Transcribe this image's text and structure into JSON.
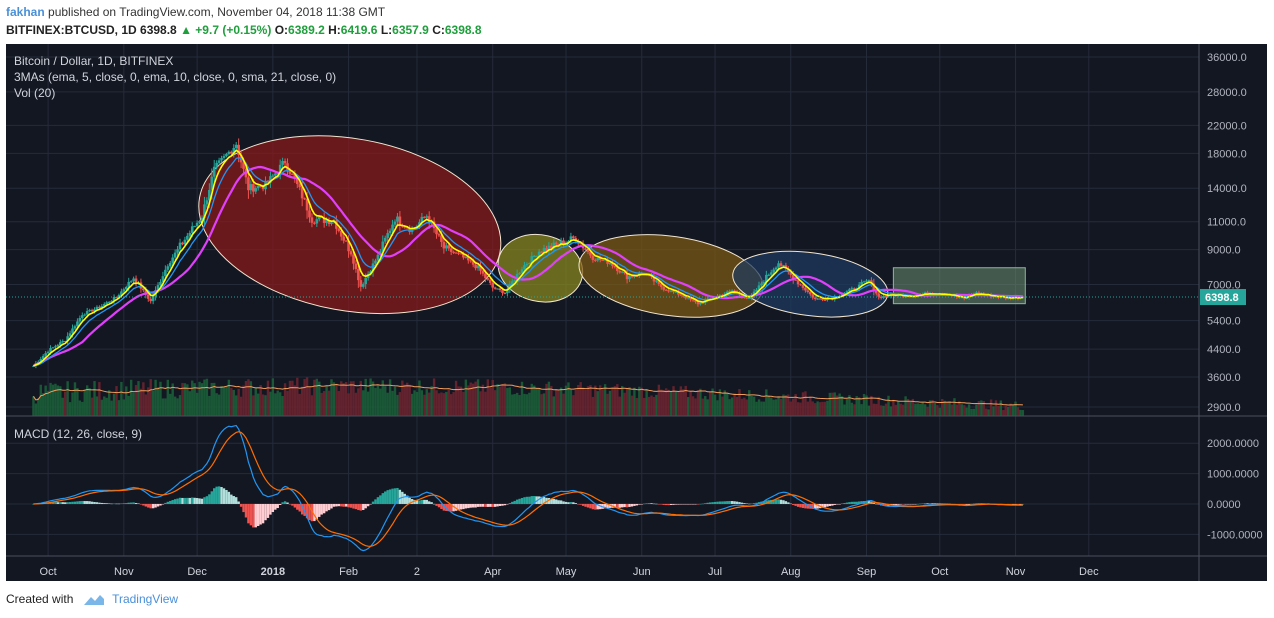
{
  "header": {
    "author": "fakhan",
    "published_text": "published on TradingView.com, November 04, 2018 11:38 GMT",
    "symbol": "BITFINEX:BTCUSD, 1D",
    "last": "6398.8",
    "change": "+9.7 (+0.15%)",
    "o_label": "O:",
    "o_value": "6389.2",
    "h_label": "H:",
    "h_value": "6419.6",
    "l_label": "L:",
    "l_value": "6357.9",
    "c_label": "C:",
    "c_value": "6398.8"
  },
  "footer": {
    "created_with": "Created with",
    "brand": "TradingView"
  },
  "colors": {
    "background": "#131722",
    "up": "#26a69a",
    "down": "#ef5350",
    "ema5": "#ffff00",
    "ema10": "#2196f3",
    "sma21": "#e040fb",
    "macd": "#2196f3",
    "signal": "#ff6d00",
    "price_line": "#26a69a",
    "volume_ma": "#f39c5a"
  },
  "chart_data": {
    "type": "candlestick",
    "legend": {
      "title": "Bitcoin / Dollar, 1D, BITFINEX",
      "mas": "3MAs (ema, 5, close, 0, ema, 10, close, 0, sma, 21, close, 0)",
      "vol": "Vol (20)",
      "macd": "MACD (12, 26, close, 9)"
    },
    "x_ticks": [
      "Oct",
      "Nov",
      "Dec",
      "2018",
      "Feb",
      "2",
      "Apr",
      "May",
      "Jun",
      "Jul",
      "Aug",
      "Sep",
      "Oct",
      "Nov",
      "Dec"
    ],
    "price_ticks": [
      "36000.0",
      "28000.0",
      "22000.0",
      "18000.0",
      "14000.0",
      "11000.0",
      "9000.0",
      "7000.0",
      "5400.0",
      "4400.0",
      "3600.0",
      "2900.0"
    ],
    "price_scale": "log",
    "last_price": "6398.8",
    "macd_ticks": [
      "2000.0000",
      "1000.0000",
      "0.0000",
      "-1000.0000"
    ],
    "price_series": [
      {
        "d": "2017-09-25",
        "c": 3900
      },
      {
        "d": "2017-10-01",
        "c": 4350
      },
      {
        "d": "2017-10-08",
        "c": 4700
      },
      {
        "d": "2017-10-15",
        "c": 5650
      },
      {
        "d": "2017-10-22",
        "c": 5950
      },
      {
        "d": "2017-10-29",
        "c": 6400
      },
      {
        "d": "2017-11-05",
        "c": 7350
      },
      {
        "d": "2017-11-12",
        "c": 6200
      },
      {
        "d": "2017-11-19",
        "c": 8100
      },
      {
        "d": "2017-11-26",
        "c": 9700
      },
      {
        "d": "2017-12-03",
        "c": 11500
      },
      {
        "d": "2017-12-08",
        "c": 16000
      },
      {
        "d": "2017-12-17",
        "c": 19300
      },
      {
        "d": "2017-12-22",
        "c": 14000
      },
      {
        "d": "2017-12-29",
        "c": 14300
      },
      {
        "d": "2018-01-06",
        "c": 17000
      },
      {
        "d": "2018-01-12",
        "c": 13800
      },
      {
        "d": "2018-01-17",
        "c": 11200
      },
      {
        "d": "2018-01-26",
        "c": 11100
      },
      {
        "d": "2018-02-02",
        "c": 8800
      },
      {
        "d": "2018-02-06",
        "c": 6900
      },
      {
        "d": "2018-02-13",
        "c": 8600
      },
      {
        "d": "2018-02-20",
        "c": 11300
      },
      {
        "d": "2018-02-27",
        "c": 10400
      },
      {
        "d": "2018-03-05",
        "c": 11500
      },
      {
        "d": "2018-03-12",
        "c": 9100
      },
      {
        "d": "2018-03-19",
        "c": 8600
      },
      {
        "d": "2018-03-26",
        "c": 7900
      },
      {
        "d": "2018-04-01",
        "c": 6850
      },
      {
        "d": "2018-04-06",
        "c": 6600
      },
      {
        "d": "2018-04-13",
        "c": 7900
      },
      {
        "d": "2018-04-20",
        "c": 8900
      },
      {
        "d": "2018-04-27",
        "c": 9300
      },
      {
        "d": "2018-05-05",
        "c": 9800
      },
      {
        "d": "2018-05-12",
        "c": 8500
      },
      {
        "d": "2018-05-19",
        "c": 8200
      },
      {
        "d": "2018-05-26",
        "c": 7400
      },
      {
        "d": "2018-06-02",
        "c": 7600
      },
      {
        "d": "2018-06-10",
        "c": 6800
      },
      {
        "d": "2018-06-17",
        "c": 6500
      },
      {
        "d": "2018-06-24",
        "c": 6100
      },
      {
        "d": "2018-07-01",
        "c": 6400
      },
      {
        "d": "2018-07-08",
        "c": 6700
      },
      {
        "d": "2018-07-15",
        "c": 6300
      },
      {
        "d": "2018-07-22",
        "c": 7400
      },
      {
        "d": "2018-07-27",
        "c": 8200
      },
      {
        "d": "2018-08-04",
        "c": 7100
      },
      {
        "d": "2018-08-11",
        "c": 6300
      },
      {
        "d": "2018-08-18",
        "c": 6350
      },
      {
        "d": "2018-08-25",
        "c": 6700
      },
      {
        "d": "2018-09-02",
        "c": 7200
      },
      {
        "d": "2018-09-06",
        "c": 6400
      },
      {
        "d": "2018-09-13",
        "c": 6500
      },
      {
        "d": "2018-09-20",
        "c": 6450
      },
      {
        "d": "2018-09-27",
        "c": 6600
      },
      {
        "d": "2018-10-04",
        "c": 6550
      },
      {
        "d": "2018-10-11",
        "c": 6300
      },
      {
        "d": "2018-10-15",
        "c": 6600
      },
      {
        "d": "2018-10-22",
        "c": 6450
      },
      {
        "d": "2018-10-29",
        "c": 6350
      },
      {
        "d": "2018-11-04",
        "c": 6398.8
      }
    ],
    "annotations": [
      {
        "shape": "ellipse",
        "from": "2017-12-01",
        "to": "2018-04-05",
        "hi": 20000,
        "lo": 5800,
        "fill": "#8b1a1a"
      },
      {
        "shape": "ellipse",
        "from": "2018-04-03",
        "to": "2018-05-08",
        "hi": 10000,
        "lo": 6200,
        "fill": "#8a8a1e"
      },
      {
        "shape": "ellipse",
        "from": "2018-05-06",
        "to": "2018-07-21",
        "hi": 9900,
        "lo": 5600,
        "fill": "#7d5a14"
      },
      {
        "shape": "ellipse",
        "from": "2018-07-08",
        "to": "2018-09-10",
        "hi": 8800,
        "lo": 5600,
        "fill": "#1e3a5f"
      },
      {
        "shape": "rectangle",
        "from": "2018-09-12",
        "to": "2018-11-05",
        "hi": 7900,
        "lo": 6100,
        "fill": "#6b8f71"
      }
    ]
  }
}
